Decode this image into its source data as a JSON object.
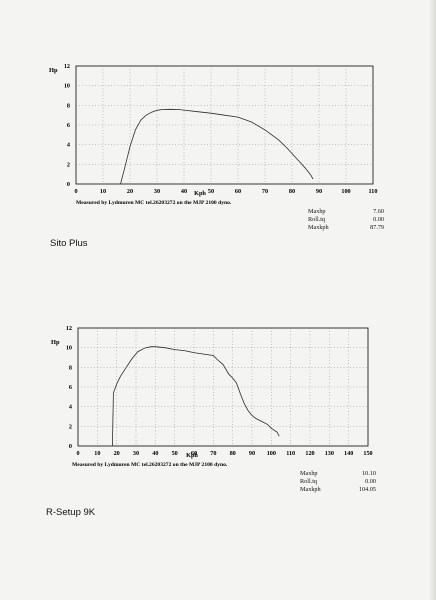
{
  "charts": [
    {
      "caption": "Sito Plus",
      "ylabel": "Hp",
      "xlabel": "Kph",
      "measured_note": "Measured by Lydmuren MC tel.26203272 on the MJP 2100 dyno.",
      "specs": [
        {
          "label": "Maxhp",
          "value": "7.60"
        },
        {
          "label": "Roll.tq",
          "value": "0.00"
        },
        {
          "label": "Maxkph",
          "value": "87.79"
        }
      ]
    },
    {
      "caption": "R-Setup 9K",
      "ylabel": "Hp",
      "xlabel": "Kph",
      "measured_note": "Measured by Lydmuren MC tel.26203272 on the MJP 2100 dyno.",
      "specs": [
        {
          "label": "Maxhp",
          "value": "10.10"
        },
        {
          "label": "Roll.tq",
          "value": "0.00"
        },
        {
          "label": "Maxkph",
          "value": "104.05"
        }
      ]
    }
  ],
  "chart_data": [
    {
      "type": "line",
      "title": "",
      "xlabel": "Kph",
      "ylabel": "Hp",
      "xlim": [
        0,
        110
      ],
      "ylim": [
        0,
        12
      ],
      "xticks": [
        0,
        10,
        20,
        30,
        40,
        50,
        60,
        70,
        80,
        90,
        100,
        110
      ],
      "yticks": [
        0,
        2,
        4,
        6,
        8,
        10,
        12
      ],
      "grid": "dotted",
      "series": [
        {
          "x": [
            16.5,
            18,
            20,
            22,
            24,
            26,
            28,
            30,
            32,
            35,
            38,
            40,
            45,
            50,
            55,
            60,
            65,
            70,
            75,
            78,
            80,
            83,
            85,
            87,
            87.79
          ],
          "y": [
            0,
            1.6,
            3.8,
            5.5,
            6.5,
            7.0,
            7.3,
            7.5,
            7.58,
            7.6,
            7.58,
            7.52,
            7.35,
            7.2,
            7.0,
            6.8,
            6.3,
            5.5,
            4.5,
            3.7,
            3.1,
            2.2,
            1.6,
            0.9,
            0.5
          ]
        }
      ]
    },
    {
      "type": "line",
      "title": "",
      "xlabel": "Kph",
      "ylabel": "Hp",
      "xlim": [
        0,
        150
      ],
      "ylim": [
        0,
        12
      ],
      "xticks": [
        0,
        10,
        20,
        30,
        40,
        50,
        60,
        70,
        80,
        90,
        100,
        110,
        120,
        130,
        140,
        150
      ],
      "yticks": [
        0,
        2,
        4,
        6,
        8,
        10,
        12
      ],
      "grid": "dotted",
      "series": [
        {
          "x": [
            17.8,
            18.3,
            20,
            22,
            25,
            28,
            31,
            35,
            38,
            40,
            45,
            50,
            55,
            60,
            65,
            70,
            72,
            75,
            78,
            80,
            82,
            84,
            86,
            88,
            90,
            92,
            95,
            98,
            100,
            103,
            104.05
          ],
          "y": [
            0,
            5.4,
            6.3,
            7.1,
            8.0,
            8.9,
            9.6,
            10.0,
            10.1,
            10.1,
            10.0,
            9.8,
            9.7,
            9.5,
            9.35,
            9.2,
            8.8,
            8.3,
            7.3,
            6.9,
            6.4,
            5.3,
            4.3,
            3.6,
            3.1,
            2.8,
            2.5,
            2.2,
            1.8,
            1.4,
            1.0
          ]
        }
      ]
    }
  ]
}
